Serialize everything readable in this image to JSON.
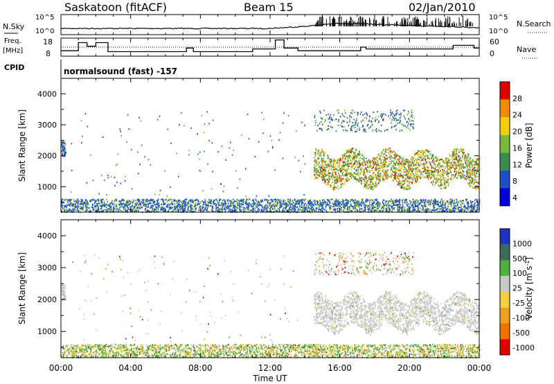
{
  "header": {
    "station": "Saskatoon (fitACF)",
    "beam": "Beam 15",
    "date": "02/Jan/2010"
  },
  "noise_panel": {
    "left_label": "N.Sky",
    "right_label": "N.Search",
    "ticks_left": [
      "10^5",
      "10^0"
    ],
    "ticks_right": [
      "10^5",
      "10^0"
    ]
  },
  "freq_panel": {
    "left_label_1": "Freq.",
    "left_label_2": "[MHz]",
    "ticks_left": [
      "18",
      "8"
    ],
    "right_label": "Nave",
    "ticks_right": [
      "60",
      "0"
    ]
  },
  "cpid": {
    "label": "CPID",
    "program": "normalsound (fast) -157"
  },
  "power_panel": {
    "ylabel": "Slant Range [km]",
    "yticks": [
      "4000",
      "3000",
      "2000",
      "1000"
    ],
    "colorbar_label": "Power [dB]",
    "colorbar_ticks": [
      "28",
      "24",
      "20",
      "16",
      "12",
      "8",
      "4"
    ],
    "colors": [
      "#0000dd",
      "#2050c8",
      "#3c8a50",
      "#7ab83c",
      "#f0d000",
      "#f08c00",
      "#e00000"
    ]
  },
  "velocity_panel": {
    "ylabel": "Slant Range [km]",
    "yticks": [
      "4000",
      "3000",
      "2000",
      "1000"
    ],
    "colorbar_label": "Velocity [m s",
    "colorbar_sup": "-1",
    "colorbar_ticks": [
      "1000",
      "500",
      "100",
      "25",
      "-25",
      "-100",
      "-500",
      "-1000"
    ],
    "colors": [
      "#2030c0",
      "#3c6a5c",
      "#50b040",
      "#c8c8c8",
      "#f0d040",
      "#f0a020",
      "#f07000",
      "#e00000"
    ]
  },
  "time_axis": {
    "xlabel": "Time UT",
    "ticks": [
      "00:00",
      "04:00",
      "08:00",
      "12:00",
      "16:00",
      "20:00",
      "00:00"
    ]
  },
  "chart_data": [
    {
      "type": "line",
      "name": "noise",
      "ylabel": "N.Sky",
      "x": [
        "00:00",
        "04:00",
        "08:00",
        "12:00",
        "14:00",
        "16:00",
        "18:00",
        "20:00",
        "22:00",
        "24:00"
      ],
      "series": [
        {
          "values": [
            1.0,
            1.0,
            1.0,
            1.0,
            1.6,
            2.5,
            2.2,
            1.8,
            1.6,
            1.2
          ]
        }
      ]
    },
    {
      "type": "line",
      "name": "frequency",
      "ylabel": "Freq. [MHz]",
      "ylim": [
        8,
        18
      ],
      "series": [
        {
          "name": "Freq.",
          "x_hours": [
            0,
            1,
            1.5,
            2,
            2.7,
            7.2,
            7.6,
            10,
            11,
            12.3,
            12.8,
            13.6,
            16,
            17.2,
            17.5,
            18,
            20,
            21.2,
            22.5,
            23.7,
            24
          ],
          "values": [
            11,
            15.5,
            13.5,
            15.5,
            10.5,
            12.5,
            10.5,
            10.5,
            12,
            17,
            12.5,
            11,
            11,
            13,
            12,
            12,
            12,
            12,
            14,
            12.5,
            12.5
          ]
        }
      ]
    },
    {
      "type": "heatmap",
      "name": "power",
      "xlim": [
        "00:00",
        "24:00"
      ],
      "ylim": [
        180,
        4500
      ],
      "ylabel": "Slant Range [km]",
      "colorbar": "Power [dB]",
      "zlim": [
        0,
        30
      ],
      "regions": [
        {
          "t0": 0,
          "t1": 24,
          "r0": 180,
          "r1": 600,
          "power": 6
        },
        {
          "t0": 0,
          "t1": 0.2,
          "r0": 2000,
          "r1": 2500,
          "power": 10
        },
        {
          "t0": 14.5,
          "t1": 24,
          "r0": 900,
          "r1": 2200,
          "power": 16
        },
        {
          "t0": 14.5,
          "t1": 20,
          "r0": 2800,
          "r1": 3500,
          "power": 6
        }
      ]
    },
    {
      "type": "heatmap",
      "name": "velocity",
      "xlim": [
        "00:00",
        "24:00"
      ],
      "ylim": [
        180,
        4500
      ],
      "ylabel": "Slant Range [km]",
      "colorbar": "Velocity [m s-1]",
      "zlim": [
        -1000,
        1000
      ],
      "regions": [
        {
          "t0": 0,
          "t1": 24,
          "r0": 180,
          "r1": 600,
          "velocity": 50
        },
        {
          "t0": 14.5,
          "t1": 24,
          "r0": 1000,
          "r1": 2200,
          "velocity": 0
        },
        {
          "t0": 14.5,
          "t1": 20,
          "r0": 2800,
          "r1": 3500,
          "velocity": 0
        }
      ]
    }
  ]
}
